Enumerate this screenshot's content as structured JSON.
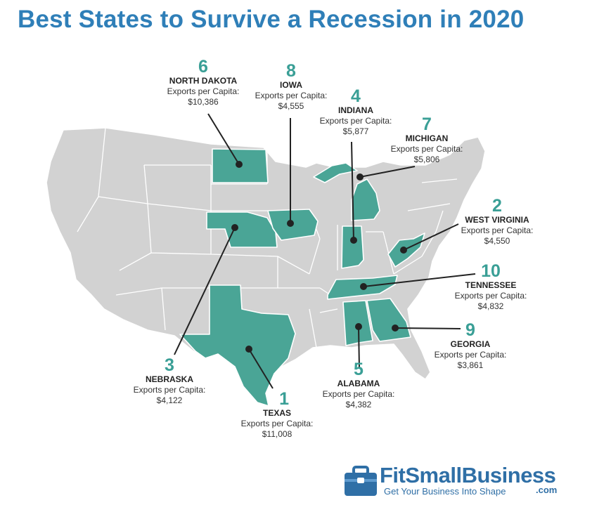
{
  "title": "Best States to Survive a Recession in 2020",
  "colors": {
    "title": "#2f7fb8",
    "highlight": "#4aa596",
    "base_state": "#d2d2d2",
    "rank": "#3a9f96"
  },
  "callouts": {
    "north_dakota": {
      "rank": "6",
      "state": "NORTH DAKOTA",
      "metric": "Exports per Capita:",
      "value": "$10,386"
    },
    "iowa": {
      "rank": "8",
      "state": "IOWA",
      "metric": "Exports per Capita:",
      "value": "$4,555"
    },
    "indiana": {
      "rank": "4",
      "state": "INDIANA",
      "metric": "Exports per Capita:",
      "value": "$5,877"
    },
    "michigan": {
      "rank": "7",
      "state": "MICHIGAN",
      "metric": "Exports per Capita:",
      "value": "$5,806"
    },
    "west_virginia": {
      "rank": "2",
      "state": "WEST VIRGINIA",
      "metric": "Exports per Capita:",
      "value": "$4,550"
    },
    "tennessee": {
      "rank": "10",
      "state": "TENNESSEE",
      "metric": "Exports per Capita:",
      "value": "$4,832"
    },
    "georgia": {
      "rank": "9",
      "state": "GEORGIA",
      "metric": "Exports per Capita:",
      "value": "$3,861"
    },
    "alabama": {
      "rank": "5",
      "state": "ALABAMA",
      "metric": "Exports per Capita:",
      "value": "$4,382"
    },
    "texas": {
      "rank": "1",
      "state": "TEXAS",
      "metric": "Exports per Capita:",
      "value": "$11,008"
    },
    "nebraska": {
      "rank": "3",
      "state": "NEBRASKA",
      "metric": "Exports per Capita:",
      "value": "$4,122"
    }
  },
  "logo": {
    "name": "FitSmallBusiness",
    "dotcom": ".com",
    "tagline": "Get Your Business Into Shape",
    "icon": "briefcase-icon"
  }
}
